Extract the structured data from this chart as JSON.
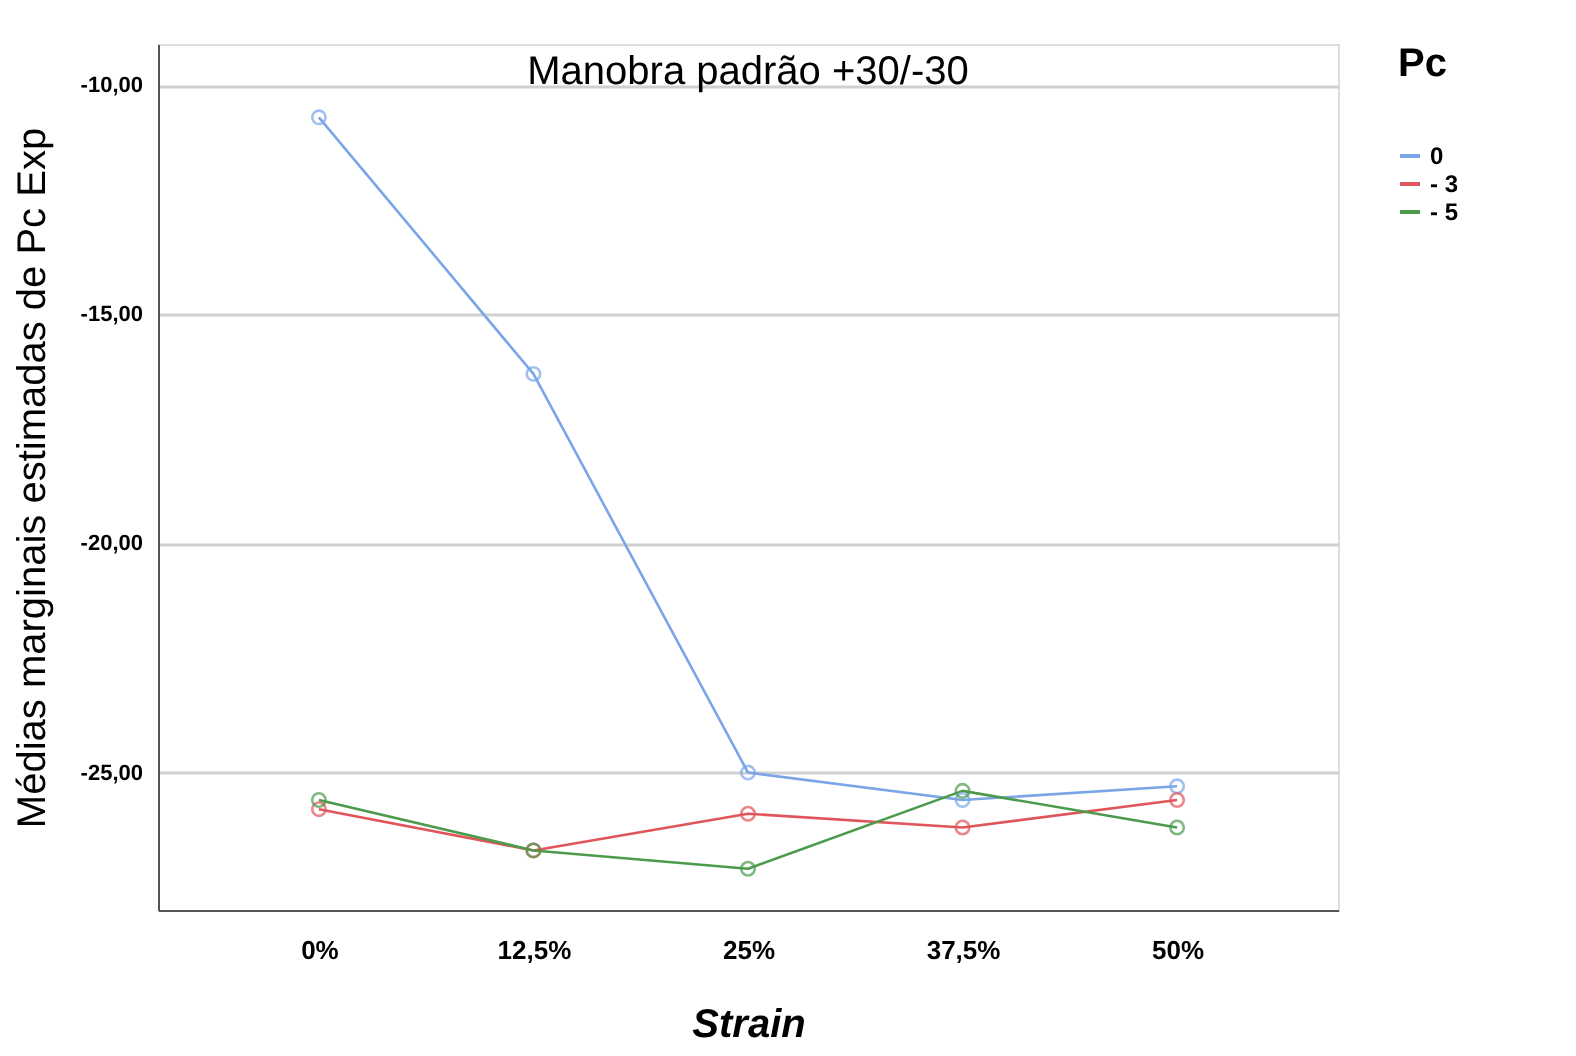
{
  "chart_data": {
    "type": "line",
    "title": "Manobra padrão +30/-30",
    "xlabel": "Strain",
    "ylabel": "Médias marginais estimadas de Pc Exp",
    "legend_title": "Pc",
    "categories": [
      "0%",
      "12,5%",
      "25%",
      "37,5%",
      "50%"
    ],
    "series": [
      {
        "name": "0",
        "color": "#7aa6e8",
        "values": [
          -10.7,
          -16.3,
          -25.0,
          -25.6,
          -25.3
        ]
      },
      {
        "name": "- 3",
        "color": "#e0555a",
        "values": [
          -25.8,
          -26.7,
          -25.9,
          -26.2,
          -25.6
        ]
      },
      {
        "name": "- 5",
        "color": "#4c9a4c",
        "values": [
          -25.6,
          -26.7,
          -27.1,
          -25.4,
          -26.2
        ]
      }
    ],
    "ylim": [
      -28.0,
      -9.1
    ],
    "yticks": [
      {
        "value": -10,
        "label": "-10,00"
      },
      {
        "value": -15,
        "label": "-15,00"
      },
      {
        "value": -20,
        "label": "-20,00"
      },
      {
        "value": -25,
        "label": "-25,00"
      }
    ],
    "grid": "y",
    "legend": "top right",
    "marker": "circle",
    "line_style": "solid"
  }
}
